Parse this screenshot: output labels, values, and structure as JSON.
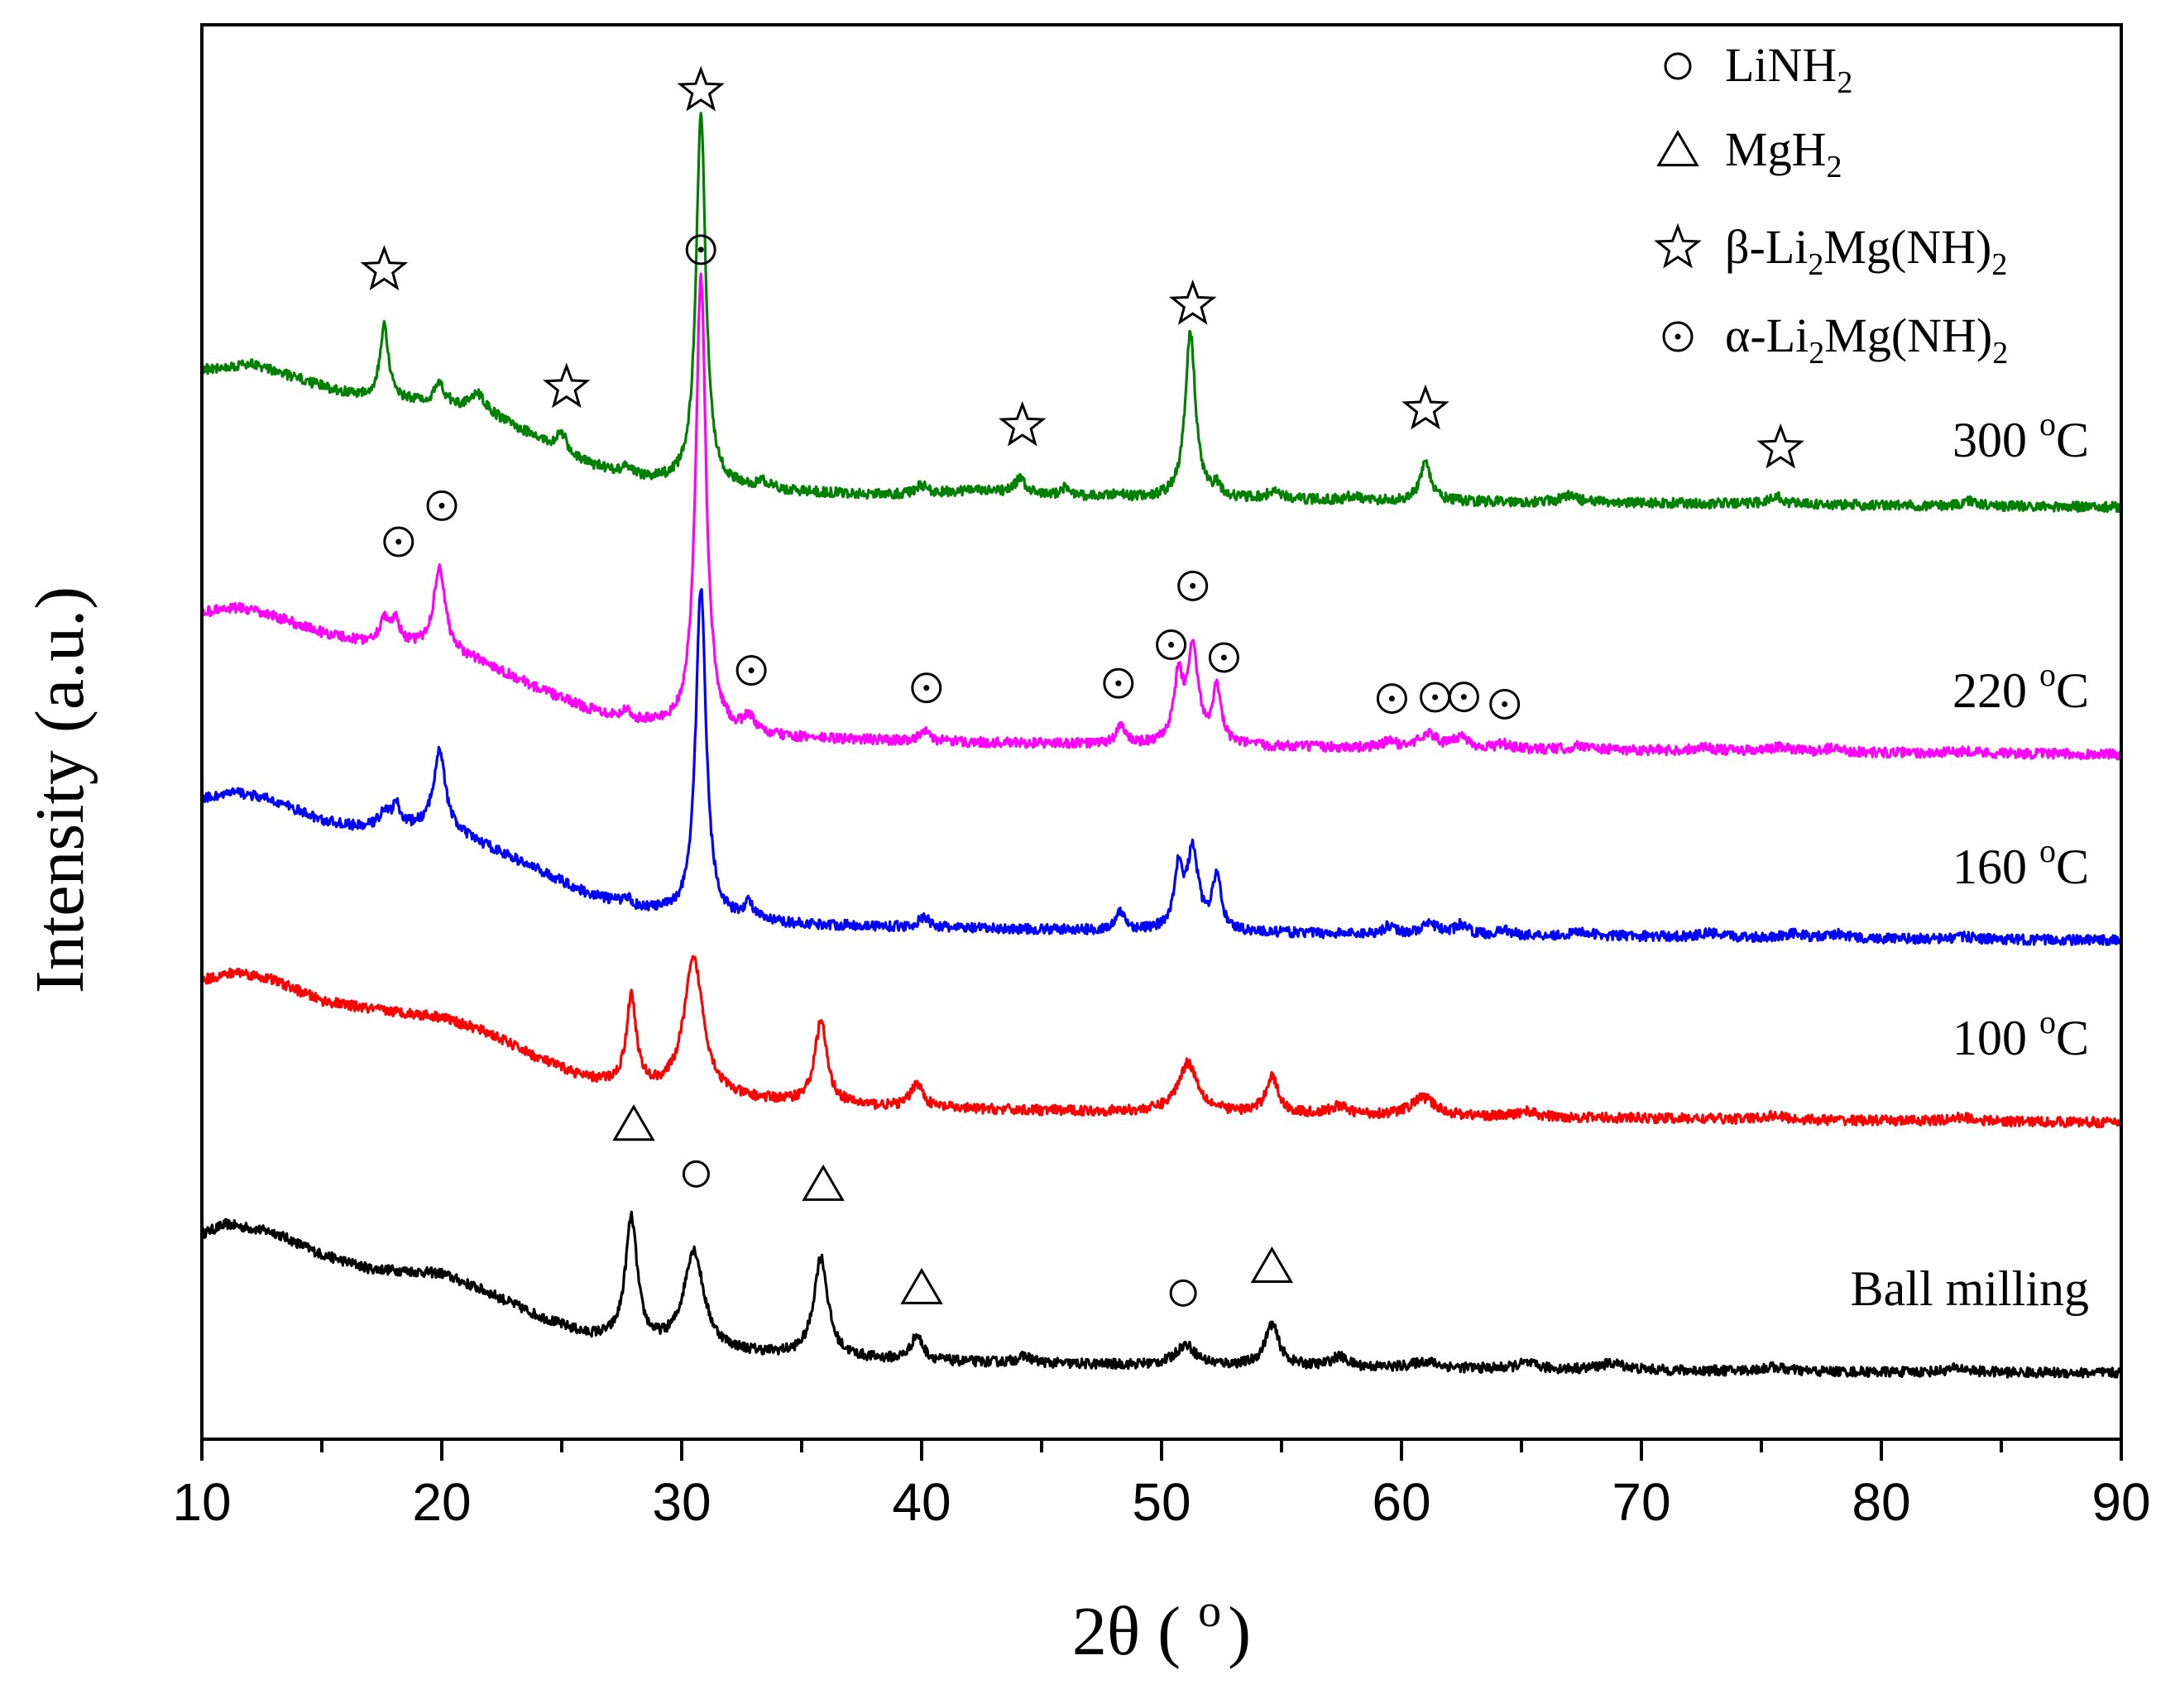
{
  "chart_data": {
    "type": "line",
    "title": "",
    "xlabel": "2θ ( ",
    "xlabel_unit": "o",
    "xlabel_close": ")",
    "ylabel": "Intensity (a.u.)",
    "xlim": [
      10,
      90
    ],
    "xticks": [
      "10",
      "20",
      "30",
      "40",
      "50",
      "60",
      "70",
      "80",
      "90"
    ],
    "yticks_shown": false,
    "legend": [
      {
        "marker": "circle",
        "text": "LiNH",
        "sub": "2",
        "text2": "",
        "sub2": "",
        "text3": ""
      },
      {
        "marker": "triangle",
        "text": "MgH",
        "sub": "2",
        "text2": "",
        "sub2": "",
        "text3": ""
      },
      {
        "marker": "star",
        "text": "β-Li",
        "sub": "2",
        "text2": "Mg(NH)",
        "sub2": "2",
        "text3": ""
      },
      {
        "marker": "dotcircle",
        "text": "α-Li",
        "sub": "2",
        "text2": "Mg(NH)",
        "sub2": "2",
        "text3": ""
      }
    ],
    "series": [
      {
        "name": "Ball milling",
        "label_value": "Ball milling",
        "label_unit": "",
        "color": "#000000",
        "baseline": 0,
        "offset": 0,
        "background": [
          [
            10,
            170
          ],
          [
            11,
            182
          ],
          [
            13,
            172
          ],
          [
            15,
            145
          ],
          [
            17,
            128
          ],
          [
            20,
            122
          ],
          [
            22,
            98
          ],
          [
            24,
            70
          ],
          [
            26,
            47
          ],
          [
            28,
            36
          ],
          [
            30,
            30
          ],
          [
            32,
            26
          ],
          [
            35,
            22
          ],
          [
            38,
            18
          ],
          [
            40,
            16
          ],
          [
            45,
            13
          ],
          [
            50,
            11
          ],
          [
            55,
            10
          ],
          [
            60,
            8
          ],
          [
            70,
            5
          ],
          [
            80,
            3
          ],
          [
            90,
            2
          ]
        ],
        "peaks": [
          [
            27.9,
            150,
            0.3
          ],
          [
            30.5,
            120,
            0.5
          ],
          [
            35.8,
            120,
            0.35
          ],
          [
            39.8,
            30,
            0.3
          ],
          [
            44.3,
            8,
            0.4
          ],
          [
            51.0,
            25,
            0.5
          ],
          [
            54.6,
            50,
            0.35
          ],
          [
            57.4,
            12,
            0.4
          ],
          [
            61.0,
            8,
            0.6
          ],
          [
            65.2,
            7,
            0.5
          ],
          [
            68.8,
            8,
            0.7
          ],
          [
            75.5,
            5,
            0.6
          ],
          [
            83.2,
            5,
            0.6
          ]
        ]
      },
      {
        "name": "100 °C",
        "label_value": "100 ",
        "label_unit": "o",
        "label_suffix": "C",
        "color": "#ff0000",
        "baseline": 0,
        "offset": 0,
        "background": [
          [
            10,
            175
          ],
          [
            11.5,
            185
          ],
          [
            13,
            175
          ],
          [
            15,
            150
          ],
          [
            17,
            140
          ],
          [
            20,
            130
          ],
          [
            22,
            110
          ],
          [
            24,
            80
          ],
          [
            26,
            55
          ],
          [
            28,
            42
          ],
          [
            30,
            35
          ],
          [
            32,
            30
          ],
          [
            35,
            26
          ],
          [
            38,
            22
          ],
          [
            40,
            20
          ],
          [
            45,
            17
          ],
          [
            50,
            15
          ],
          [
            55,
            13
          ],
          [
            60,
            11
          ],
          [
            70,
            8
          ],
          [
            80,
            5
          ],
          [
            90,
            3
          ]
        ],
        "peaks": [
          [
            27.9,
            110,
            0.25
          ],
          [
            30.5,
            165,
            0.5
          ],
          [
            35.8,
            100,
            0.3
          ],
          [
            39.8,
            30,
            0.3
          ],
          [
            51.1,
            60,
            0.5
          ],
          [
            54.6,
            45,
            0.3
          ],
          [
            57.4,
            10,
            0.4
          ],
          [
            60.9,
            22,
            0.6
          ],
          [
            65.2,
            7,
            0.4
          ],
          [
            75.5,
            5,
            0.5
          ],
          [
            83.4,
            5,
            0.5
          ]
        ]
      },
      {
        "name": "160 °C",
        "label_value": "160 ",
        "label_unit": "o",
        "label_suffix": "C",
        "color": "#0000ff",
        "baseline": 0,
        "offset": 0,
        "background": [
          [
            10,
            175
          ],
          [
            11.5,
            182
          ],
          [
            13,
            172
          ],
          [
            15,
            148
          ],
          [
            16.5,
            140
          ],
          [
            20,
            140
          ],
          [
            22,
            115
          ],
          [
            24,
            88
          ],
          [
            26,
            60
          ],
          [
            28,
            42
          ],
          [
            30,
            32
          ],
          [
            32,
            26
          ],
          [
            35,
            22
          ],
          [
            38,
            20
          ],
          [
            40,
            18
          ],
          [
            45,
            16
          ],
          [
            50,
            14
          ],
          [
            55,
            12
          ],
          [
            60,
            10
          ],
          [
            70,
            8
          ],
          [
            80,
            5
          ],
          [
            90,
            3
          ]
        ],
        "peaks": [
          [
            17.6,
            18,
            0.25
          ],
          [
            18.1,
            25,
            0.2
          ],
          [
            19.9,
            95,
            0.28
          ],
          [
            27.7,
            10,
            0.2
          ],
          [
            30.8,
            400,
            0.26
          ],
          [
            32.8,
            20,
            0.25
          ],
          [
            40.1,
            12,
            0.3
          ],
          [
            48.3,
            22,
            0.22
          ],
          [
            50.7,
            70,
            0.22
          ],
          [
            51.3,
            95,
            0.28
          ],
          [
            52.3,
            65,
            0.22
          ],
          [
            59.5,
            10,
            0.3
          ],
          [
            61.2,
            12,
            0.45
          ],
          [
            62.5,
            12,
            0.3
          ],
          [
            64.3,
            6,
            0.3
          ],
          [
            67.5,
            5,
            0.4
          ],
          [
            72.8,
            5,
            0.4
          ],
          [
            76.3,
            5,
            0.5
          ],
          [
            78.2,
            5,
            0.4
          ],
          [
            83.5,
            3,
            0.5
          ]
        ]
      },
      {
        "name": "220 °C",
        "label_value": "220 ",
        "label_unit": "o",
        "label_suffix": "C",
        "color": "#ff00ff",
        "baseline": 0,
        "offset": 0,
        "background": [
          [
            10,
            175
          ],
          [
            11.5,
            180
          ],
          [
            13,
            170
          ],
          [
            15,
            150
          ],
          [
            16.5,
            140
          ],
          [
            20,
            130
          ],
          [
            22,
            110
          ],
          [
            24,
            82
          ],
          [
            26,
            58
          ],
          [
            28,
            42
          ],
          [
            30,
            32
          ],
          [
            32,
            26
          ],
          [
            35,
            22
          ],
          [
            38,
            20
          ],
          [
            40,
            18
          ],
          [
            45,
            16
          ],
          [
            50,
            14
          ],
          [
            55,
            12
          ],
          [
            60,
            10
          ],
          [
            70,
            8
          ],
          [
            80,
            5
          ],
          [
            90,
            3
          ]
        ],
        "peaks": [
          [
            17.6,
            30,
            0.22
          ],
          [
            18.1,
            28,
            0.2
          ],
          [
            19.9,
            100,
            0.28
          ],
          [
            27.7,
            10,
            0.2
          ],
          [
            30.8,
            550,
            0.26
          ],
          [
            32.8,
            20,
            0.25
          ],
          [
            40.1,
            12,
            0.3
          ],
          [
            48.3,
            22,
            0.22
          ],
          [
            50.7,
            75,
            0.22
          ],
          [
            51.3,
            115,
            0.28
          ],
          [
            52.3,
            65,
            0.22
          ],
          [
            59.5,
            8,
            0.3
          ],
          [
            61.1,
            18,
            0.45
          ],
          [
            62.5,
            14,
            0.35
          ],
          [
            64.2,
            6,
            0.3
          ],
          [
            67.5,
            5,
            0.4
          ],
          [
            72.6,
            5,
            0.4
          ],
          [
            75.8,
            5,
            0.5
          ],
          [
            78.0,
            5,
            0.4
          ],
          [
            83.6,
            3,
            0.5
          ]
        ]
      },
      {
        "name": "300 °C",
        "label_value": "300 ",
        "label_unit": "o",
        "label_suffix": "C",
        "color": "#008000",
        "baseline": 0,
        "offset": 0,
        "background": [
          [
            10,
            168
          ],
          [
            12,
            175
          ],
          [
            13.5,
            162
          ],
          [
            15,
            148
          ],
          [
            16,
            140
          ],
          [
            18,
            130
          ],
          [
            20,
            130
          ],
          [
            22,
            115
          ],
          [
            24,
            85
          ],
          [
            26,
            55
          ],
          [
            28,
            38
          ],
          [
            30,
            30
          ],
          [
            32,
            25
          ],
          [
            35,
            20
          ],
          [
            38,
            17
          ],
          [
            40,
            16
          ],
          [
            42,
            22
          ],
          [
            45,
            15
          ],
          [
            50,
            12
          ],
          [
            55,
            11
          ],
          [
            60,
            9
          ],
          [
            70,
            7
          ],
          [
            80,
            4
          ],
          [
            90,
            2
          ]
        ],
        "peaks": [
          [
            17.6,
            90,
            0.22
          ],
          [
            19.9,
            22,
            0.2
          ],
          [
            21.5,
            20,
            0.3
          ],
          [
            25.0,
            22,
            0.22
          ],
          [
            27.7,
            12,
            0.2
          ],
          [
            30.8,
            450,
            0.24
          ],
          [
            33.4,
            8,
            0.3
          ],
          [
            40.0,
            12,
            0.3
          ],
          [
            44.1,
            18,
            0.3
          ],
          [
            46.0,
            10,
            0.3
          ],
          [
            48.2,
            6,
            0.2
          ],
          [
            51.2,
            200,
            0.26
          ],
          [
            52.3,
            12,
            0.2
          ],
          [
            54.7,
            10,
            0.3
          ],
          [
            58.0,
            6,
            0.3
          ],
          [
            61.0,
            45,
            0.28
          ],
          [
            67.0,
            8,
            0.4
          ],
          [
            75.6,
            10,
            0.35
          ],
          [
            83.7,
            6,
            0.4
          ]
        ]
      }
    ],
    "markers": [
      {
        "symbol": "triangle",
        "x": 28.0,
        "curve": 0,
        "above": 160
      },
      {
        "symbol": "circle",
        "x": 30.6,
        "curve": 0,
        "above": 110
      },
      {
        "symbol": "triangle",
        "x": 35.9,
        "curve": 0,
        "above": 110
      },
      {
        "symbol": "triangle",
        "x": 40.0,
        "curve": 0,
        "above": 60
      },
      {
        "symbol": "circle",
        "x": 50.9,
        "curve": 0,
        "above": 55
      },
      {
        "symbol": "triangle",
        "x": 54.6,
        "curve": 0,
        "above": 65
      },
      {
        "symbol": "dotcircle",
        "x": 18.2,
        "curve": 3,
        "above": 110
      },
      {
        "symbol": "dotcircle",
        "x": 20.0,
        "curve": 3,
        "above": 90
      },
      {
        "symbol": "dotcircle",
        "x": 30.8,
        "curve": 3,
        "above": 5
      },
      {
        "symbol": "dotcircle",
        "x": 32.9,
        "curve": 3,
        "above": 40
      },
      {
        "symbol": "dotcircle",
        "x": 40.2,
        "curve": 3,
        "above": 40
      },
      {
        "symbol": "dotcircle",
        "x": 48.2,
        "curve": 3,
        "above": 40
      },
      {
        "symbol": "dotcircle",
        "x": 50.4,
        "curve": 3,
        "above": 90
      },
      {
        "symbol": "dotcircle",
        "x": 51.3,
        "curve": 3,
        "above": 60
      },
      {
        "symbol": "dotcircle",
        "x": 52.6,
        "curve": 3,
        "above": 80
      },
      {
        "symbol": "dotcircle",
        "x": 59.6,
        "curve": 3,
        "above": 35
      },
      {
        "symbol": "dotcircle",
        "x": 61.4,
        "curve": 3,
        "above": 30
      },
      {
        "symbol": "dotcircle",
        "x": 62.6,
        "curve": 3,
        "above": 30
      },
      {
        "symbol": "dotcircle",
        "x": 64.3,
        "curve": 3,
        "above": 30
      },
      {
        "symbol": "star",
        "x": 17.6,
        "curve": 4,
        "above": 60
      },
      {
        "symbol": "star",
        "x": 25.2,
        "curve": 4,
        "above": 60
      },
      {
        "symbol": "star",
        "x": 30.8,
        "curve": 4,
        "above": 50
      },
      {
        "symbol": "star",
        "x": 44.2,
        "curve": 4,
        "above": 60
      },
      {
        "symbol": "star",
        "x": 51.3,
        "curve": 4,
        "above": 50
      },
      {
        "symbol": "star",
        "x": 61.0,
        "curve": 4,
        "above": 60
      },
      {
        "symbol": "star",
        "x": 75.8,
        "curve": 4,
        "above": 50
      }
    ]
  }
}
